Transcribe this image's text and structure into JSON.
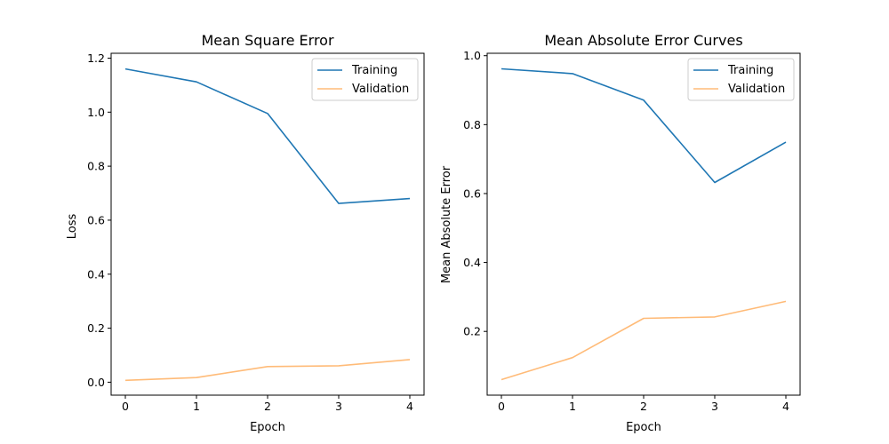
{
  "chart_data": [
    {
      "type": "line",
      "title": "Mean Square Error",
      "xlabel": "Epoch",
      "ylabel": "Loss",
      "x": [
        0,
        1,
        2,
        3,
        4
      ],
      "xlim": [
        -0.2,
        4.2
      ],
      "ylim": [
        -0.048,
        1.218
      ],
      "xticks": [
        0,
        1,
        2,
        3,
        4
      ],
      "xtick_labels": [
        "0",
        "1",
        "2",
        "3",
        "4"
      ],
      "yticks": [
        0.0,
        0.2,
        0.4,
        0.6,
        0.8,
        1.0,
        1.2
      ],
      "ytick_labels": [
        "0.0",
        "0.2",
        "0.4",
        "0.6",
        "0.8",
        "1.0",
        "1.2"
      ],
      "grid": false,
      "legend_position": "top-right",
      "series": [
        {
          "name": "Training",
          "color": "#1f77b4",
          "values": [
            1.16,
            1.112,
            0.995,
            0.662,
            0.68
          ]
        },
        {
          "name": "Validation",
          "color": "#ffbb78",
          "values": [
            0.007,
            0.017,
            0.058,
            0.061,
            0.084
          ]
        }
      ]
    },
    {
      "type": "line",
      "title": "Mean Absolute Error Curves",
      "xlabel": "Epoch",
      "ylabel": "Mean Absolute Error",
      "x": [
        0,
        1,
        2,
        3,
        4
      ],
      "xlim": [
        -0.2,
        4.2
      ],
      "ylim": [
        0.015,
        1.007
      ],
      "xticks": [
        0,
        1,
        2,
        3,
        4
      ],
      "xtick_labels": [
        "0",
        "1",
        "2",
        "3",
        "4"
      ],
      "yticks": [
        0.2,
        0.4,
        0.6,
        0.8,
        1.0
      ],
      "ytick_labels": [
        "0.2",
        "0.4",
        "0.6",
        "0.8",
        "1.0"
      ],
      "grid": false,
      "legend_position": "top-right",
      "series": [
        {
          "name": "Training",
          "color": "#1f77b4",
          "values": [
            0.962,
            0.948,
            0.871,
            0.632,
            0.749
          ]
        },
        {
          "name": "Validation",
          "color": "#ffbb78",
          "values": [
            0.06,
            0.124,
            0.238,
            0.242,
            0.287
          ]
        }
      ]
    }
  ]
}
